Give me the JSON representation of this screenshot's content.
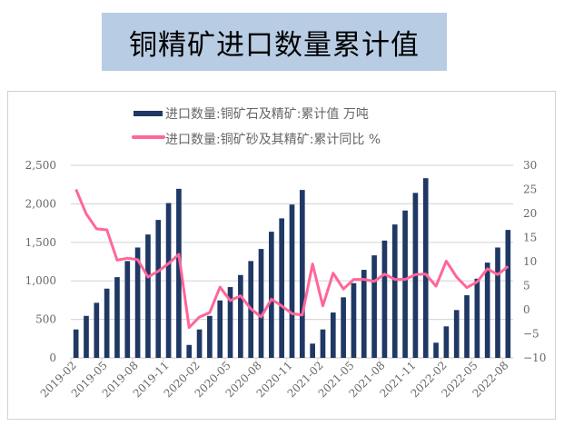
{
  "title": "铜精矿进口数量累计值",
  "chart_data": {
    "type": "bar+line",
    "title": "铜精矿进口数量累计值",
    "categories": [
      "2019-02",
      "2019-03",
      "2019-04",
      "2019-05",
      "2019-06",
      "2019-07",
      "2019-08",
      "2019-09",
      "2019-10",
      "2019-11",
      "2019-12",
      "2020-01",
      "2020-02",
      "2020-03",
      "2020-04",
      "2020-05",
      "2020-06",
      "2020-07",
      "2020-08",
      "2020-09",
      "2020-10",
      "2020-11",
      "2020-12",
      "2021-01",
      "2021-02",
      "2021-03",
      "2021-04",
      "2021-05",
      "2021-06",
      "2021-07",
      "2021-08",
      "2021-09",
      "2021-10",
      "2021-11",
      "2021-12",
      "2022-01",
      "2022-02",
      "2022-03",
      "2022-04",
      "2022-05",
      "2022-06",
      "2022-07",
      "2022-08"
    ],
    "x_tick_labels": [
      "2019-02",
      "2019-05",
      "2019-08",
      "2019-11",
      "2020-02",
      "2020-05",
      "2020-08",
      "2020-11",
      "2021-02",
      "2021-05",
      "2021-08",
      "2021-11",
      "2022-02",
      "2022-05",
      "2022-08"
    ],
    "series": [
      {
        "name": "进口数量:铜矿石及精矿:累计值 万吨",
        "type": "bar",
        "axis": "left",
        "color": "#1f3864",
        "values": [
          369,
          545,
          715,
          899,
          1048,
          1257,
          1433,
          1602,
          1791,
          2010,
          2195,
          168,
          369,
          545,
          746,
          919,
          1076,
          1257,
          1414,
          1638,
          1811,
          1991,
          2180,
          185,
          369,
          589,
          786,
          970,
          1143,
          1331,
          1523,
          1732,
          1913,
          2142,
          2333,
          197,
          409,
          621,
          813,
          1028,
          1237,
          1433,
          1661
        ]
      },
      {
        "name": "进口数量:铜矿砂及其精矿:累计同比 %",
        "type": "line",
        "axis": "right",
        "color": "#ff6699",
        "values": [
          25.0,
          19.9,
          16.8,
          16.6,
          10.3,
          10.7,
          10.4,
          6.8,
          8.0,
          9.6,
          11.5,
          -3.7,
          -1.5,
          -0.6,
          4.7,
          1.9,
          2.9,
          0.2,
          -1.5,
          2.2,
          0.8,
          -0.8,
          -1.1,
          9.5,
          0.8,
          7.6,
          4.3,
          6.3,
          6.3,
          5.9,
          7.4,
          6.3,
          6.3,
          7.3,
          7.4,
          4.9,
          10.1,
          6.8,
          4.6,
          5.8,
          8.5,
          7.3,
          9.0
        ]
      }
    ],
    "y_left": {
      "ylim": [
        0,
        2500
      ],
      "ticks": [
        "0",
        "500",
        "1,000",
        "1,500",
        "2,000",
        "2,500"
      ]
    },
    "y_right": {
      "ylim": [
        -10,
        30
      ],
      "ticks": [
        "-10",
        "-5",
        "0",
        "5",
        "10",
        "15",
        "20",
        "25",
        "30"
      ]
    },
    "grid": true,
    "legend_position": "top"
  }
}
